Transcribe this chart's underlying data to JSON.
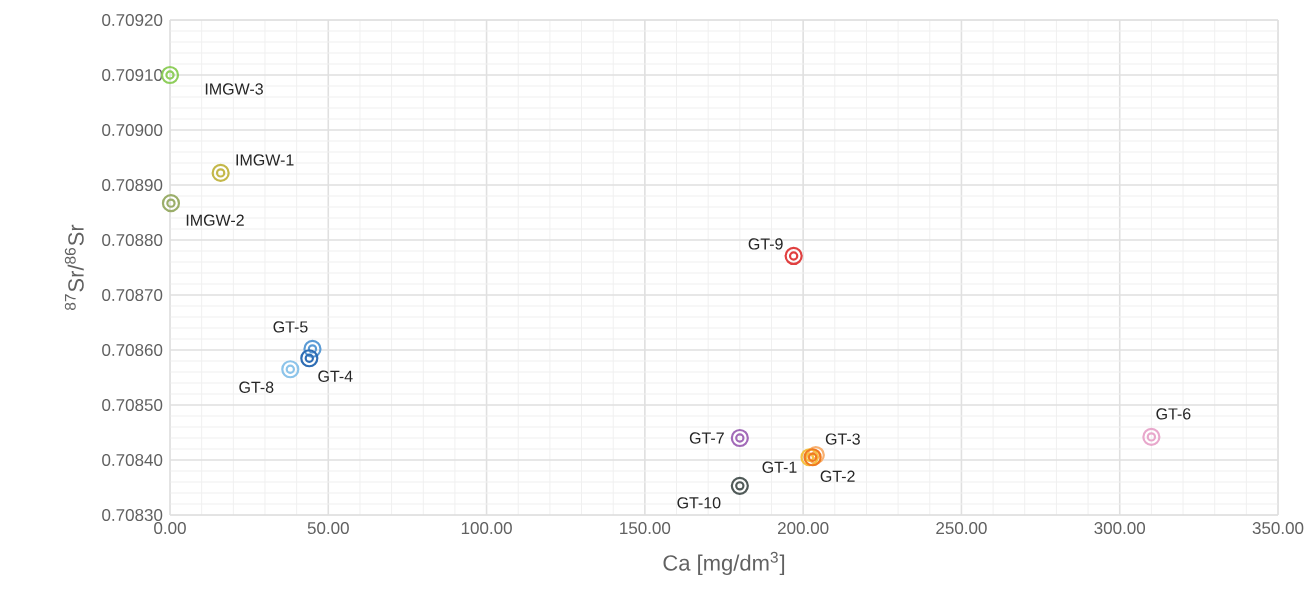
{
  "chart_data": {
    "type": "scatter",
    "xlabel": "Ca [mg/dm$^{3}$]",
    "ylabel": "$^{87}$Sr/$^{86}$Sr",
    "xlim": [
      0,
      350
    ],
    "ylim": [
      0.7083,
      0.7092
    ],
    "xticks": [
      {
        "value": 0,
        "label": "0.00"
      },
      {
        "value": 50,
        "label": "50.00"
      },
      {
        "value": 100,
        "label": "100.00"
      },
      {
        "value": 150,
        "label": "150.00"
      },
      {
        "value": 200,
        "label": "200.00"
      },
      {
        "value": 250,
        "label": "250.00"
      },
      {
        "value": 300,
        "label": "300.00"
      },
      {
        "value": 350,
        "label": "350.00"
      }
    ],
    "yticks": [
      {
        "value": 0.7083,
        "label": "0.70830"
      },
      {
        "value": 0.7084,
        "label": "0.70840"
      },
      {
        "value": 0.7085,
        "label": "0.70850"
      },
      {
        "value": 0.7086,
        "label": "0.70860"
      },
      {
        "value": 0.7087,
        "label": "0.70870"
      },
      {
        "value": 0.7088,
        "label": "0.70880"
      },
      {
        "value": 0.7089,
        "label": "0.70890"
      },
      {
        "value": 0.709,
        "label": "0.70900"
      },
      {
        "value": 0.7091,
        "label": "0.70910"
      },
      {
        "value": 0.7092,
        "label": "0.70920"
      }
    ],
    "grid": true,
    "marker": "circle",
    "series": [
      {
        "name": "IMGW-3",
        "color": "#8fce5c",
        "x": [
          0
        ],
        "values": [
          0.7091
        ]
      },
      {
        "name": "IMGW-1",
        "color": "#c4b84a",
        "x": [
          16
        ],
        "values": [
          0.708922
        ]
      },
      {
        "name": "IMGW-2",
        "color": "#9bae6a",
        "x": [
          0.3
        ],
        "values": [
          0.708867
        ]
      },
      {
        "name": "GT-9",
        "color": "#e04040",
        "x": [
          197
        ],
        "values": [
          0.708771
        ]
      },
      {
        "name": "GT-5",
        "color": "#5b9bd5",
        "x": [
          45
        ],
        "values": [
          0.708602
        ]
      },
      {
        "name": "GT-4",
        "color": "#2e6db4",
        "x": [
          44
        ],
        "values": [
          0.708585
        ]
      },
      {
        "name": "GT-8",
        "color": "#8cc4ea",
        "x": [
          38
        ],
        "values": [
          0.708565
        ]
      },
      {
        "name": "GT-7",
        "color": "#a26ab8",
        "x": [
          180
        ],
        "values": [
          0.70844
        ]
      },
      {
        "name": "GT-3",
        "color": "#f8b070",
        "x": [
          204
        ],
        "values": [
          0.708409
        ]
      },
      {
        "name": "GT-1",
        "color": "#f5c242",
        "x": [
          202
        ],
        "values": [
          0.708405
        ]
      },
      {
        "name": "GT-2",
        "color": "#f07b20",
        "x": [
          203
        ],
        "values": [
          0.708405
        ]
      },
      {
        "name": "GT-10",
        "color": "#505a58",
        "x": [
          180
        ],
        "values": [
          0.708353
        ]
      },
      {
        "name": "GT-6",
        "color": "#e8a8cc",
        "x": [
          310
        ],
        "values": [
          0.708442
        ]
      }
    ]
  }
}
